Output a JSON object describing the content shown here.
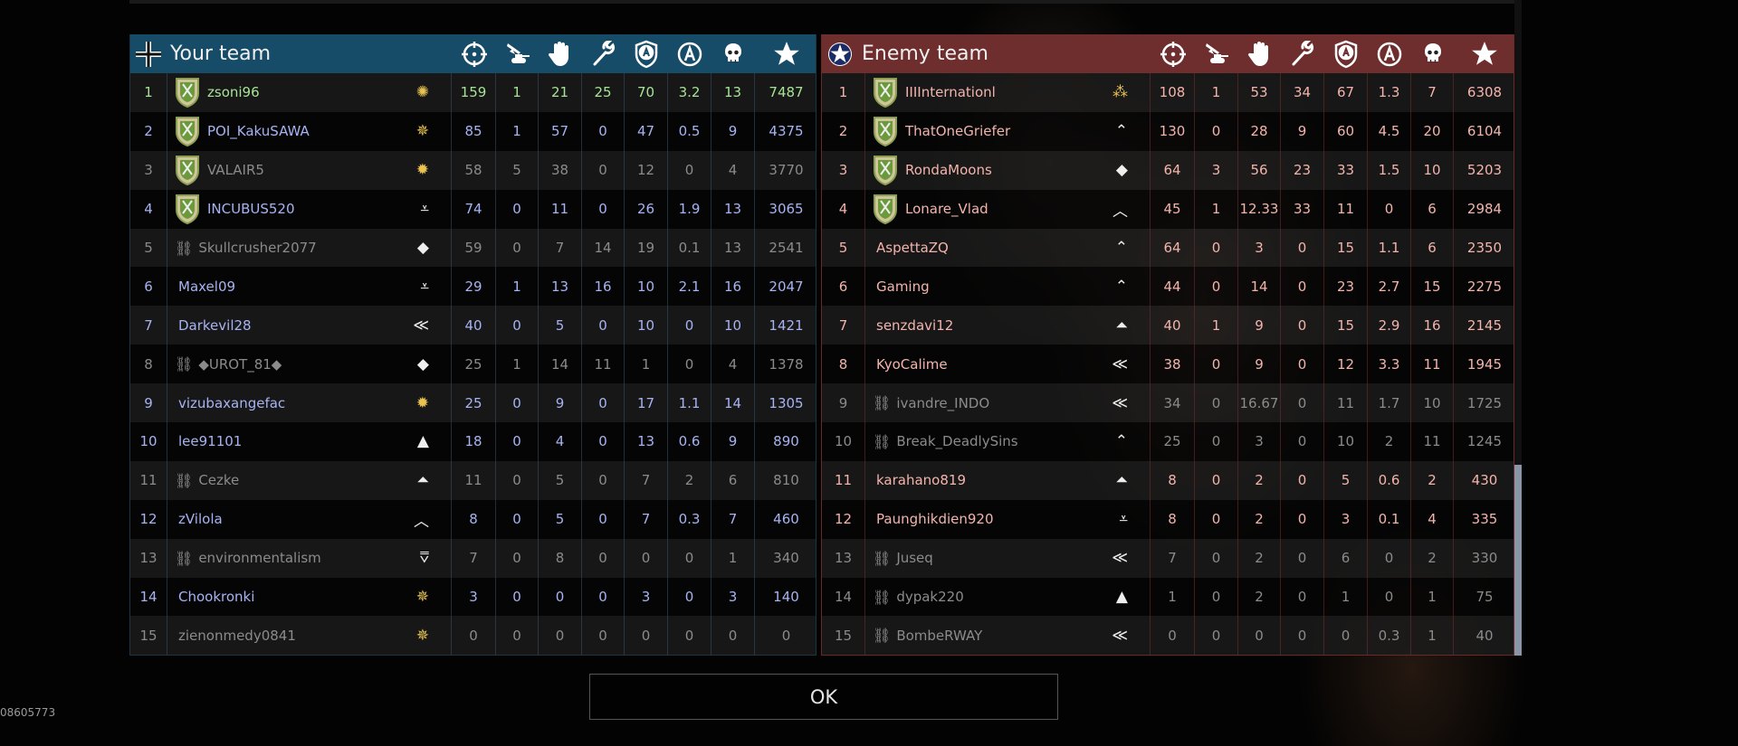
{
  "columns": [
    "kills-crosshair-icon",
    "ground-kills-icon",
    "assists-hand-icon",
    "repairs-wrench-icon",
    "captures-shield-icon",
    "activity-circle-a-icon",
    "deaths-skull-icon",
    "score-star-icon"
  ],
  "your_team": {
    "title": "Your team",
    "color": "#164c68",
    "flag_icon": "balkenkreuz-icon",
    "rows": [
      {
        "rank": "1",
        "name": "zsoni96",
        "status": "self",
        "avatar": true,
        "rank_icon": "gold-wreath",
        "stats": [
          "159",
          "1",
          "21",
          "25",
          "70",
          "3.2",
          "13",
          "7487"
        ]
      },
      {
        "rank": "2",
        "name": "POI_KakuSAWA",
        "status": "ally",
        "avatar": true,
        "rank_icon": "gold-starburst",
        "stats": [
          "85",
          "1",
          "57",
          "0",
          "47",
          "0.5",
          "9",
          "4375"
        ]
      },
      {
        "rank": "3",
        "name": "VALAIR5",
        "status": "grey",
        "avatar": true,
        "rank_icon": "gold-sun",
        "stats": [
          "58",
          "5",
          "38",
          "0",
          "12",
          "0",
          "4",
          "3770"
        ]
      },
      {
        "rank": "4",
        "name": "INCUBUS520",
        "status": "ally",
        "avatar": true,
        "rank_icon": "chevron-bars",
        "stats": [
          "74",
          "0",
          "11",
          "0",
          "26",
          "1.9",
          "13",
          "3065"
        ]
      },
      {
        "rank": "5",
        "name": "Skullcrusher2077",
        "status": "grey",
        "disconnected": true,
        "rank_icon": "diamond",
        "stats": [
          "59",
          "0",
          "7",
          "14",
          "19",
          "0.1",
          "13",
          "2541"
        ]
      },
      {
        "rank": "6",
        "name": "Maxel09",
        "status": "ally",
        "rank_icon": "triple-chevron-diamond",
        "stats": [
          "29",
          "1",
          "13",
          "16",
          "10",
          "2.1",
          "16",
          "2047"
        ]
      },
      {
        "rank": "7",
        "name": "Darkevil28",
        "status": "ally",
        "rank_icon": "triple-chevron",
        "stats": [
          "40",
          "0",
          "5",
          "0",
          "10",
          "0",
          "10",
          "1421"
        ]
      },
      {
        "rank": "8",
        "name": "◆UROT_81◆",
        "status": "grey",
        "disconnected": true,
        "rank_icon": "diamond",
        "stats": [
          "25",
          "1",
          "14",
          "11",
          "1",
          "0",
          "4",
          "1378"
        ]
      },
      {
        "rank": "9",
        "name": "vizubaxangefac",
        "status": "ally",
        "rank_icon": "gold-sun",
        "stats": [
          "25",
          "0",
          "9",
          "0",
          "17",
          "1.1",
          "14",
          "1305"
        ]
      },
      {
        "rank": "10",
        "name": "lee91101",
        "status": "ally",
        "rank_icon": "chevron-block",
        "stats": [
          "18",
          "0",
          "4",
          "0",
          "13",
          "0.6",
          "9",
          "890"
        ]
      },
      {
        "rank": "11",
        "name": "Cezke",
        "status": "grey",
        "disconnected": true,
        "rank_icon": "chevron-block-diamond",
        "stats": [
          "11",
          "0",
          "5",
          "0",
          "7",
          "2",
          "6",
          "810"
        ]
      },
      {
        "rank": "12",
        "name": "zVilola",
        "status": "ally",
        "rank_icon": "chevron",
        "stats": [
          "8",
          "0",
          "5",
          "0",
          "7",
          "0.3",
          "7",
          "460"
        ]
      },
      {
        "rank": "13",
        "name": "environmentalism",
        "status": "grey",
        "disconnected": true,
        "rank_icon": "chevron-diamond",
        "stats": [
          "7",
          "0",
          "8",
          "0",
          "0",
          "0",
          "1",
          "340"
        ]
      },
      {
        "rank": "14",
        "name": "Chookronki",
        "status": "ally",
        "rank_icon": "gold-starburst",
        "stats": [
          "3",
          "0",
          "0",
          "0",
          "3",
          "0",
          "3",
          "140"
        ]
      },
      {
        "rank": "15",
        "name": "zienonmedy0841",
        "status": "grey",
        "rank_icon": "gold-starburst",
        "stats": [
          "0",
          "0",
          "0",
          "0",
          "0",
          "0",
          "0",
          "0"
        ]
      }
    ]
  },
  "enemy_team": {
    "title": "Enemy team",
    "color": "#6f2e2e",
    "flag_icon": "us-star-roundel-icon",
    "rows": [
      {
        "rank": "1",
        "name": "IIIInternationl",
        "status": "enemy",
        "avatar": true,
        "rank_icon": "gold-three-stars",
        "stats": [
          "108",
          "1",
          "53",
          "34",
          "67",
          "1.3",
          "7",
          "6308"
        ]
      },
      {
        "rank": "2",
        "name": "ThatOneGriefer",
        "status": "enemy",
        "avatar": true,
        "rank_icon": "double-chevron-outline",
        "stats": [
          "130",
          "0",
          "28",
          "9",
          "60",
          "4.5",
          "20",
          "6104"
        ]
      },
      {
        "rank": "3",
        "name": "RondaMoons",
        "status": "enemy",
        "avatar": true,
        "rank_icon": "diamond",
        "stats": [
          "64",
          "3",
          "56",
          "23",
          "33",
          "1.5",
          "10",
          "5203"
        ]
      },
      {
        "rank": "4",
        "name": "Lonare_Vlad",
        "status": "enemy",
        "avatar": true,
        "rank_icon": "chevron",
        "stats": [
          "45",
          "1",
          "12.33",
          "33",
          "11",
          "0",
          "6",
          "2984"
        ]
      },
      {
        "rank": "5",
        "name": "AspettaZQ",
        "status": "enemy",
        "rank_icon": "double-chevron-outline",
        "stats": [
          "64",
          "0",
          "3",
          "0",
          "15",
          "1.1",
          "6",
          "2350"
        ]
      },
      {
        "rank": "6",
        "name": "Gaming",
        "status": "enemy",
        "rank_icon": "double-chevron-outline",
        "stats": [
          "44",
          "0",
          "14",
          "0",
          "23",
          "2.7",
          "15",
          "2275"
        ]
      },
      {
        "rank": "7",
        "name": "senzdavi12",
        "status": "enemy",
        "rank_icon": "chevron-block-diamond",
        "stats": [
          "40",
          "1",
          "9",
          "0",
          "15",
          "2.9",
          "16",
          "2145"
        ]
      },
      {
        "rank": "8",
        "name": "KyoCalime",
        "status": "enemy",
        "rank_icon": "triple-chevron",
        "stats": [
          "38",
          "0",
          "9",
          "0",
          "12",
          "3.3",
          "11",
          "1945"
        ]
      },
      {
        "rank": "9",
        "name": "ivandre_INDO",
        "status": "grey",
        "disconnected": true,
        "rank_icon": "triple-chevron",
        "stats": [
          "34",
          "0",
          "16.67",
          "0",
          "11",
          "1.7",
          "10",
          "1725"
        ]
      },
      {
        "rank": "10",
        "name": "Break_DeadlySins",
        "status": "grey",
        "disconnected": true,
        "rank_icon": "double-chevron-outline",
        "stats": [
          "25",
          "0",
          "3",
          "0",
          "10",
          "2",
          "11",
          "1245"
        ]
      },
      {
        "rank": "11",
        "name": "karahano819",
        "status": "enemy",
        "rank_icon": "chevron-block-two-diamonds",
        "stats": [
          "8",
          "0",
          "2",
          "0",
          "5",
          "0.6",
          "2",
          "430"
        ]
      },
      {
        "rank": "12",
        "name": "Paunghikdien920",
        "status": "enemy",
        "rank_icon": "triple-chevron-diamond",
        "stats": [
          "8",
          "0",
          "2",
          "0",
          "3",
          "0.1",
          "4",
          "335"
        ]
      },
      {
        "rank": "13",
        "name": "Juseq",
        "status": "grey",
        "disconnected": true,
        "rank_icon": "triple-chevron",
        "stats": [
          "7",
          "0",
          "2",
          "0",
          "6",
          "0",
          "2",
          "330"
        ]
      },
      {
        "rank": "14",
        "name": "dypak220",
        "status": "grey",
        "disconnected": true,
        "rank_icon": "chevron-block",
        "stats": [
          "1",
          "0",
          "2",
          "0",
          "1",
          "0",
          "1",
          "75"
        ]
      },
      {
        "rank": "15",
        "name": "BombeRWAY",
        "status": "grey",
        "disconnected": true,
        "rank_icon": "triple-chevron",
        "stats": [
          "0",
          "0",
          "0",
          "0",
          "0",
          "0.3",
          "1",
          "40"
        ]
      }
    ]
  },
  "ok_button": "OK",
  "session_id": "08605773"
}
